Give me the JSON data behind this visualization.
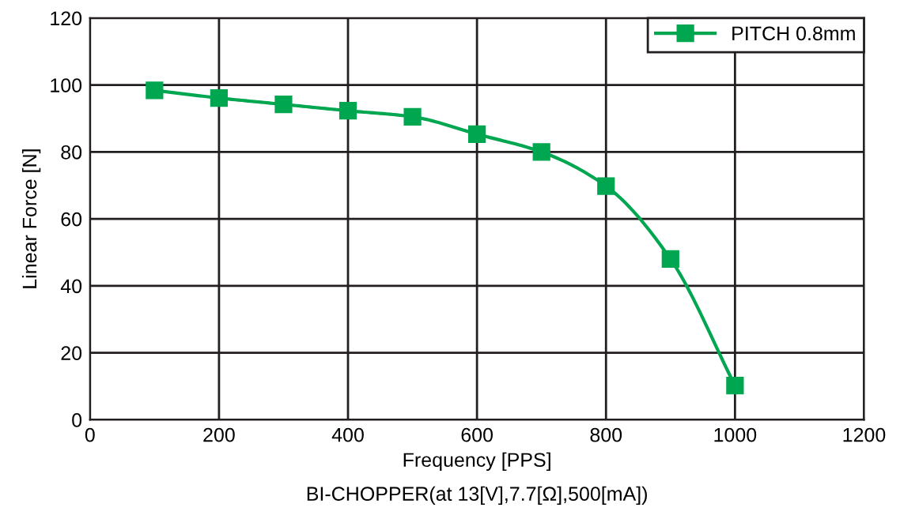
{
  "chart_data": {
    "type": "line",
    "xlabel": "Frequency [PPS]",
    "ylabel": "Linear Force [N]",
    "annotations": [
      "BI-CHOPPER(at 13[V],7.7[Ω],500[mA])"
    ],
    "x": [
      100,
      200,
      300,
      400,
      500,
      600,
      700,
      800,
      900,
      1000
    ],
    "series": [
      {
        "name": "PITCH 0.8mm",
        "color": "#00a650",
        "values": [
          98.4,
          96.1,
          94.2,
          92.3,
          90.5,
          85.3,
          80,
          69.8,
          48,
          10.2
        ]
      }
    ],
    "xlim": [
      0,
      1200
    ],
    "xticks": [
      0,
      200,
      400,
      600,
      800,
      1000,
      1200
    ],
    "ylim": [
      0,
      120
    ],
    "yticks": [
      0,
      20,
      40,
      60,
      80,
      100,
      120
    ],
    "grid": true,
    "legend": "top right",
    "marker": "square",
    "line_style": "solid"
  }
}
